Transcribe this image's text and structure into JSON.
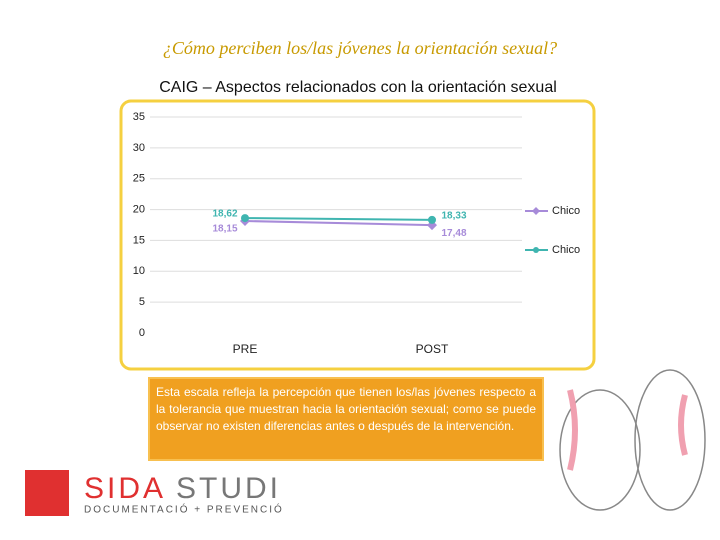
{
  "slide_title": "¿Cómo perciben los/las jóvenes la orientación sexual?",
  "chart_data": {
    "type": "line",
    "title": "CAIG – Aspectos relacionados con la orientación sexual",
    "categories": [
      "PRE",
      "POST"
    ],
    "series": [
      {
        "name": "Chico",
        "color": "#a78bd9",
        "values": [
          18.15,
          17.48
        ],
        "value_labels": [
          "18,15",
          "17,48"
        ]
      },
      {
        "name": "Chico",
        "color": "#3fb5b0",
        "values": [
          18.62,
          18.33
        ],
        "value_labels": [
          "18,62",
          "18,33"
        ]
      }
    ],
    "ylim": [
      0,
      35
    ],
    "yticks": [
      0,
      5,
      10,
      15,
      20,
      25,
      30,
      35
    ],
    "grid": true
  },
  "note": "Esta escala refleja la percepción que tienen los/las jóvenes respecto a la tolerancia que muestran hacia la orientación sexual; como se puede observar no existen diferencias antes o después de la intervención.",
  "logo": {
    "name_a": "SIDA",
    "name_b": "STUDI",
    "tagline": "DOCUMENTACIÓ + PREVENCIÓ"
  }
}
